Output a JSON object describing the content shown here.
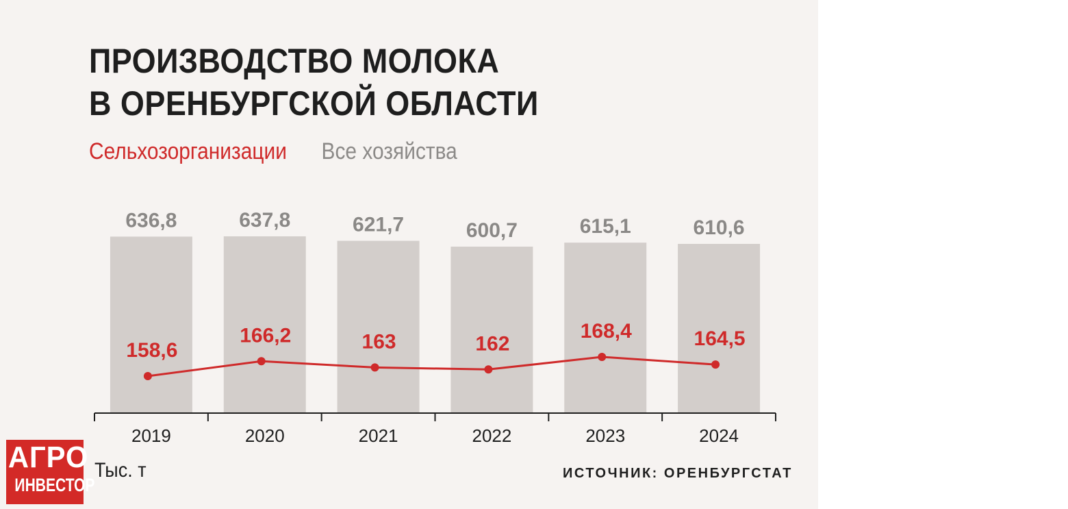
{
  "title_lines": [
    "ПРОИЗВОДСТВО МОЛОКА",
    "В ОРЕНБУРГСКОЙ ОБЛАСТИ"
  ],
  "legend": {
    "agri_orgs": "Сельхозорганизации",
    "all_farms": "Все хозяйства"
  },
  "unit": "Тыс. т",
  "source": "ИСТОЧНИК: ОРЕНБУРГСТАТ",
  "logo": {
    "line1": "АГРО",
    "line2": "ИНВЕСТОР"
  },
  "colors": {
    "line": "#cf2a2a",
    "bars": "#d3cecb",
    "bar_labels": "#8a8886",
    "background": "#f6f3f1",
    "logo": "#d32a27"
  },
  "chart_data": {
    "type": "bar",
    "categories": [
      "2019",
      "2020",
      "2021",
      "2022",
      "2023",
      "2024"
    ],
    "series": [
      {
        "name": "Все хозяйства",
        "type": "bar",
        "values": [
          636.8,
          637.8,
          621.7,
          600.7,
          615.1,
          610.6
        ],
        "labels": [
          "636,8",
          "637,8",
          "621,7",
          "600,7",
          "615,1",
          "610,6"
        ]
      },
      {
        "name": "Сельхозорганизации",
        "type": "line",
        "values": [
          158.6,
          166.2,
          163,
          162,
          168.4,
          164.5
        ],
        "labels": [
          "158,6",
          "166,2",
          "163",
          "162",
          "168,4",
          "164,5"
        ]
      }
    ],
    "ylabel": "Тыс. т",
    "grid": false,
    "legend_position": "top-left"
  }
}
